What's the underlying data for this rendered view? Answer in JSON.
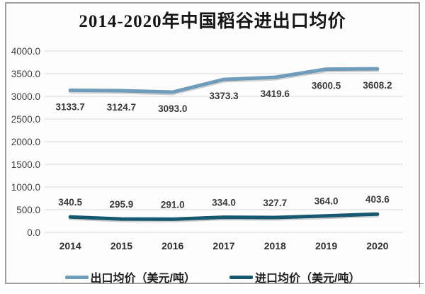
{
  "title": "2014-2020年中国稻谷进出口均价",
  "chart_data": {
    "type": "line",
    "categories": [
      "2014",
      "2015",
      "2016",
      "2017",
      "2018",
      "2019",
      "2020"
    ],
    "series": [
      {
        "name": "出口均价（美元/吨）",
        "values": [
          3133.7,
          3124.7,
          3093.0,
          3373.3,
          3419.6,
          3600.5,
          3608.2
        ],
        "labels": [
          "3133.7",
          "3124.7",
          "3093.0",
          "3373.3",
          "3419.6",
          "3600.5",
          "3608.2"
        ],
        "color": "#6f9cba",
        "label_position": "below"
      },
      {
        "name": "进口均价（美元/吨）",
        "values": [
          340.5,
          295.9,
          291.0,
          334.0,
          327.7,
          364.0,
          403.6
        ],
        "labels": [
          "340.5",
          "295.9",
          "291.0",
          "334.0",
          "327.7",
          "364.0",
          "403.6"
        ],
        "color": "#175871",
        "label_position": "above"
      }
    ],
    "ylim": [
      0,
      4000
    ],
    "ytick_step": 500,
    "yticks": [
      "4000.0",
      "3500.0",
      "3000.0",
      "2500.0",
      "2000.0",
      "1500.0",
      "1000.0",
      "500.0",
      "0.0"
    ],
    "grid": true,
    "legend_position": "bottom",
    "colors": {
      "gridline": "#d9d9d9",
      "axis_text": "#3f3f3f",
      "data_label_text": "#3a3a3a",
      "legend_text": "#1f1f1f",
      "frame_border": "#9e9e9e",
      "background": "#fdfdfd"
    }
  }
}
